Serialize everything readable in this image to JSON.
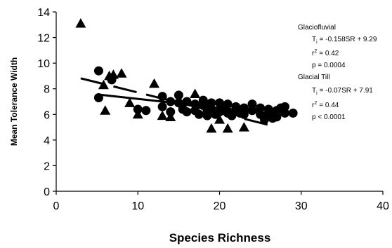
{
  "chart_data": {
    "type": "scatter",
    "xlabel": "Species Richness",
    "ylabel": "Mean Tolerance Width",
    "xlim": [
      0,
      40
    ],
    "ylim": [
      0,
      14
    ],
    "xticks": [
      0,
      10,
      20,
      30,
      40
    ],
    "yticks": [
      0,
      2,
      4,
      6,
      8,
      10,
      12,
      14
    ],
    "grid": false,
    "series": [
      {
        "name": "Glaciofluvial",
        "marker": "triangle",
        "color": "#000000",
        "points": [
          [
            3,
            13.1
          ],
          [
            5.8,
            8.3
          ],
          [
            6,
            6.3
          ],
          [
            6.5,
            9.0
          ],
          [
            7,
            9.1
          ],
          [
            8,
            9.2
          ],
          [
            9,
            6.9
          ],
          [
            10,
            6.0
          ],
          [
            12,
            8.4
          ],
          [
            13,
            5.9
          ],
          [
            14,
            5.8
          ],
          [
            17,
            7.6
          ],
          [
            19,
            4.9
          ],
          [
            20,
            5.6
          ],
          [
            21,
            4.9
          ],
          [
            23,
            5.0
          ]
        ]
      },
      {
        "name": "Glacial Till",
        "marker": "circle",
        "color": "#000000",
        "points": [
          [
            5.2,
            9.4
          ],
          [
            5.2,
            7.3
          ],
          [
            6.8,
            8.7
          ],
          [
            10,
            6.4
          ],
          [
            11,
            6.3
          ],
          [
            13,
            7.4
          ],
          [
            13,
            6.6
          ],
          [
            14,
            7.0
          ],
          [
            14,
            6.2
          ],
          [
            15,
            7.5
          ],
          [
            15,
            6.9
          ],
          [
            15.5,
            6.4
          ],
          [
            16,
            7.0
          ],
          [
            16,
            6.2
          ],
          [
            17,
            6.8
          ],
          [
            17,
            6.3
          ],
          [
            17.5,
            6.0
          ],
          [
            18,
            7.1
          ],
          [
            18,
            6.7
          ],
          [
            18.5,
            6.3
          ],
          [
            18.5,
            5.9
          ],
          [
            19,
            6.9
          ],
          [
            19,
            6.4
          ],
          [
            19.5,
            6.0
          ],
          [
            20,
            6.9
          ],
          [
            20,
            6.2
          ],
          [
            20.5,
            6.5
          ],
          [
            21,
            6.8
          ],
          [
            21,
            6.1
          ],
          [
            21.5,
            5.9
          ],
          [
            22,
            6.6
          ],
          [
            22,
            6.3
          ],
          [
            22.5,
            6.1
          ],
          [
            23,
            6.5
          ],
          [
            23,
            6.0
          ],
          [
            24,
            6.8
          ],
          [
            24,
            6.3
          ],
          [
            25,
            6.5
          ],
          [
            25,
            6.0
          ],
          [
            25.5,
            5.6
          ],
          [
            26,
            6.4
          ],
          [
            26,
            6.1
          ],
          [
            26.5,
            5.7
          ],
          [
            27,
            6.3
          ],
          [
            27,
            5.8
          ],
          [
            27.5,
            6.5
          ],
          [
            28,
            6.1
          ],
          [
            28,
            6.6
          ],
          [
            29,
            6.1
          ]
        ]
      }
    ],
    "trendlines": [
      {
        "series": "Glaciofluvial",
        "slope": -0.158,
        "intercept": 9.29,
        "x_range": [
          3,
          27
        ],
        "style": "dashed"
      },
      {
        "series": "Glacial Till",
        "slope": -0.07,
        "intercept": 7.91,
        "x_range": [
          5,
          27
        ],
        "style": "solid"
      }
    ],
    "annotations": [
      {
        "title": "Glaciofluvial",
        "equation": "= -0.158SR + 9.29",
        "r2_value": "= 0.42",
        "p_text": "p = 0.0004"
      },
      {
        "title": "Glacial Till",
        "equation": "= -0.07SR + 7.91",
        "r2_value": "= 0.44",
        "p_text": "p < 0.0001"
      }
    ],
    "equation_lhs": "T",
    "equation_sub": "i",
    "r2_label": "r",
    "r2_sup": "2"
  }
}
